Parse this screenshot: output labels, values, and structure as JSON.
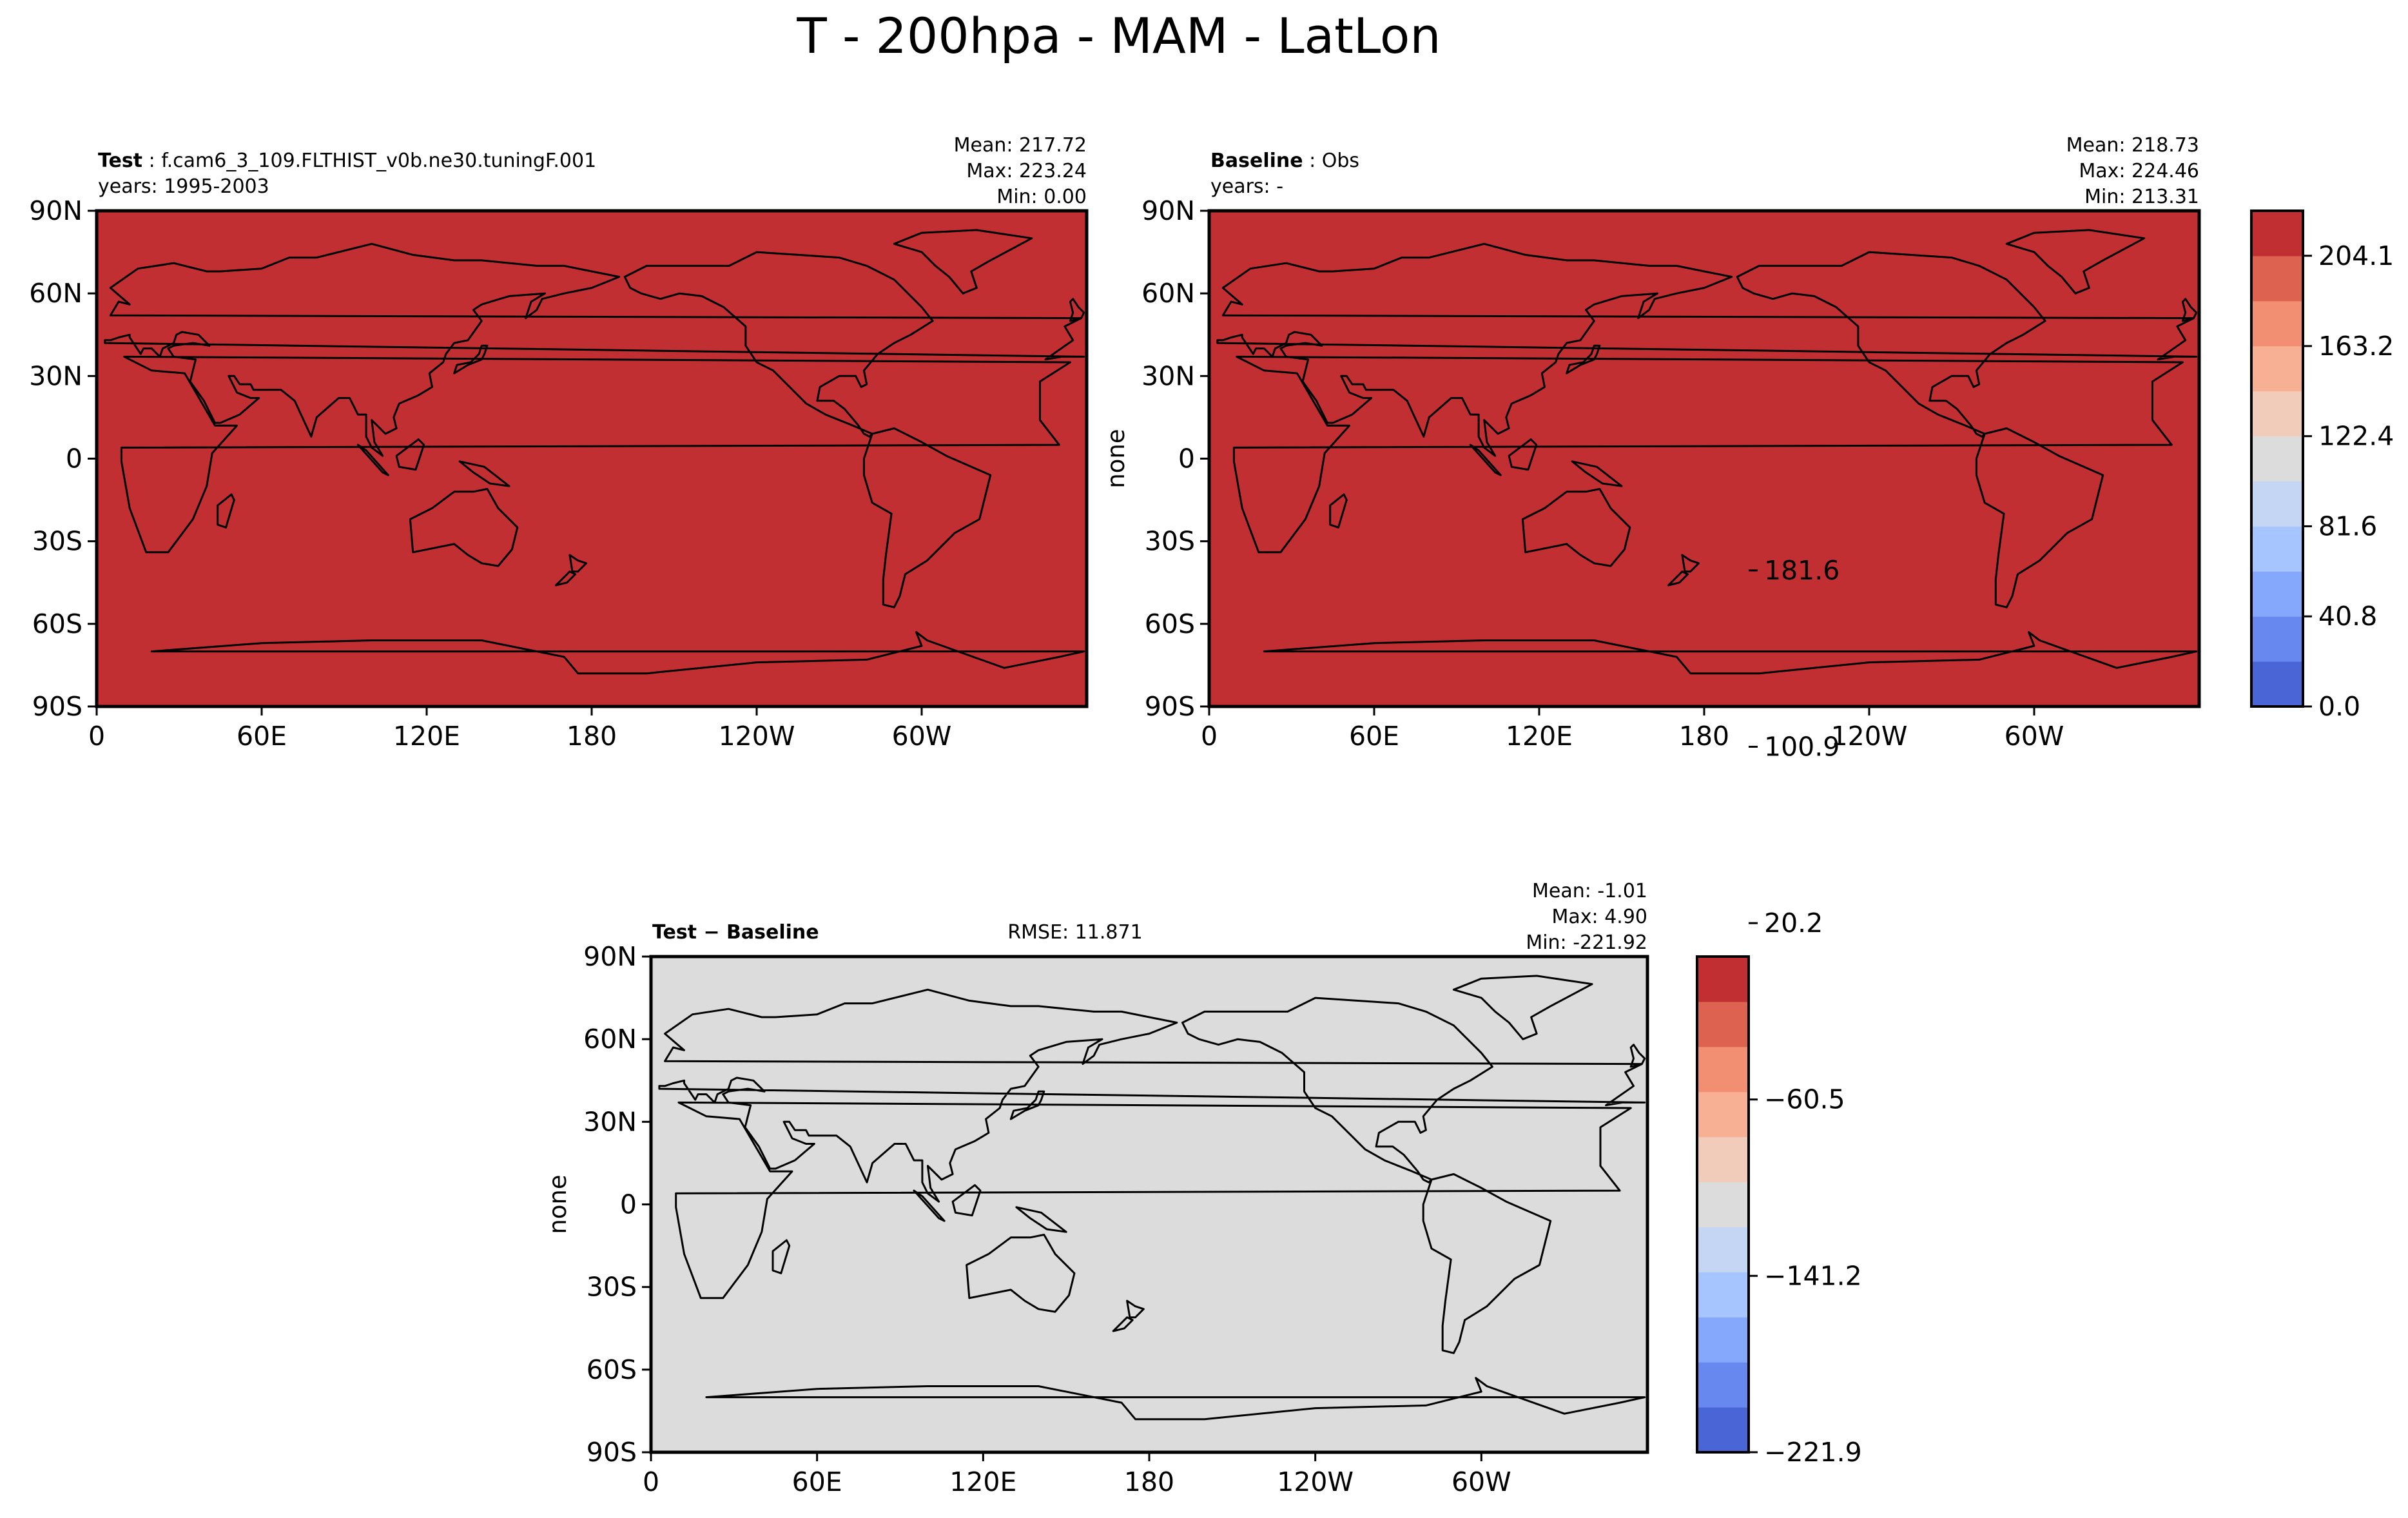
{
  "figure": {
    "title": "T - 200hpa - MAM - LatLon"
  },
  "chart_data": [
    {
      "type": "heatmap",
      "panel": "test",
      "label_bold": "Test",
      "label_sep": ":",
      "label_value": "f.cam6_3_109.FLTHIST_v0b.ne30.tuningF.001",
      "years": "years: 1995-2003",
      "stats": [
        "Mean: 217.72",
        "Max: 223.24",
        "Min:  0.00"
      ],
      "ylabel": "",
      "xticks": [
        "0",
        "60E",
        "120E",
        "180",
        "120W",
        "60W"
      ],
      "xtick_lon": [
        0,
        60,
        120,
        180,
        240,
        300
      ],
      "yticks": [
        "90N",
        "60N",
        "30N",
        "0",
        "30S",
        "60S",
        "90S"
      ],
      "ytick_lat": [
        90,
        60,
        30,
        0,
        -30,
        -60,
        -90
      ],
      "xlim": [
        0,
        360
      ],
      "ylim": [
        -90,
        90
      ],
      "field_value": 217.72,
      "field_color": "#c22f32",
      "uses_colorbar": "main"
    },
    {
      "type": "heatmap",
      "panel": "baseline",
      "label_bold": "Baseline",
      "label_sep": ":",
      "label_value": "Obs",
      "years": "years: -",
      "stats": [
        "Mean: 218.73",
        "Max: 224.46",
        "Min: 213.31"
      ],
      "ylabel": "none",
      "xticks": [
        "0",
        "60E",
        "120E",
        "180",
        "120W",
        "60W"
      ],
      "xtick_lon": [
        0,
        60,
        120,
        180,
        240,
        300
      ],
      "yticks": [
        "90N",
        "60N",
        "30N",
        "0",
        "30S",
        "60S",
        "90S"
      ],
      "ytick_lat": [
        90,
        60,
        30,
        0,
        -30,
        -60,
        -90
      ],
      "xlim": [
        0,
        360
      ],
      "ylim": [
        -90,
        90
      ],
      "field_value": 218.73,
      "field_color": "#c22f32",
      "uses_colorbar": "main"
    },
    {
      "type": "heatmap",
      "panel": "diff",
      "label_bold": "Test − Baseline",
      "rmse": "RMSE: 11.871",
      "stats": [
        "Mean: -1.01",
        "Max:  4.90",
        "Min: -221.92"
      ],
      "ylabel": "none",
      "xticks": [
        "0",
        "60E",
        "120E",
        "180",
        "120W",
        "60W"
      ],
      "xtick_lon": [
        0,
        60,
        120,
        180,
        240,
        300
      ],
      "yticks": [
        "90N",
        "60N",
        "30N",
        "0",
        "30S",
        "60S",
        "90S"
      ],
      "ytick_lat": [
        90,
        60,
        30,
        0,
        -30,
        -60,
        -90
      ],
      "xlim": [
        0,
        360
      ],
      "ylim": [
        -90,
        90
      ],
      "field_value": -1.01,
      "field_color": "#dcdcdc",
      "uses_colorbar": "diff"
    }
  ],
  "colorbars": {
    "main": {
      "range": [
        0.0,
        224.46
      ],
      "colors": [
        "#4a66d6",
        "#6788ee",
        "#86a8fc",
        "#a6c4fe",
        "#c4d6f3",
        "#dcdcdc",
        "#f1ccba",
        "#f7b093",
        "#f28e72",
        "#de6250",
        "#c22f32"
      ],
      "tick_labels": [
        "0.0",
        "40.8",
        "81.6",
        "122.4",
        "163.2",
        "204.1"
      ],
      "tick_values": [
        0.0,
        40.8,
        81.6,
        122.4,
        163.2,
        204.1
      ]
    },
    "diff": {
      "range": [
        -221.92,
        4.9
      ],
      "colors": [
        "#4a66d6",
        "#6788ee",
        "#86a8fc",
        "#a6c4fe",
        "#c4d6f3",
        "#dcdcdc",
        "#f1ccba",
        "#f7b093",
        "#f28e72",
        "#de6250",
        "#c22f32"
      ],
      "tick_labels": [
        "−221.9",
        "−141.2",
        "−60.5",
        "20.2",
        "100.9",
        "181.6"
      ],
      "tick_values": [
        -221.9,
        -141.2,
        -60.5,
        20.2,
        100.9,
        181.6
      ]
    }
  }
}
